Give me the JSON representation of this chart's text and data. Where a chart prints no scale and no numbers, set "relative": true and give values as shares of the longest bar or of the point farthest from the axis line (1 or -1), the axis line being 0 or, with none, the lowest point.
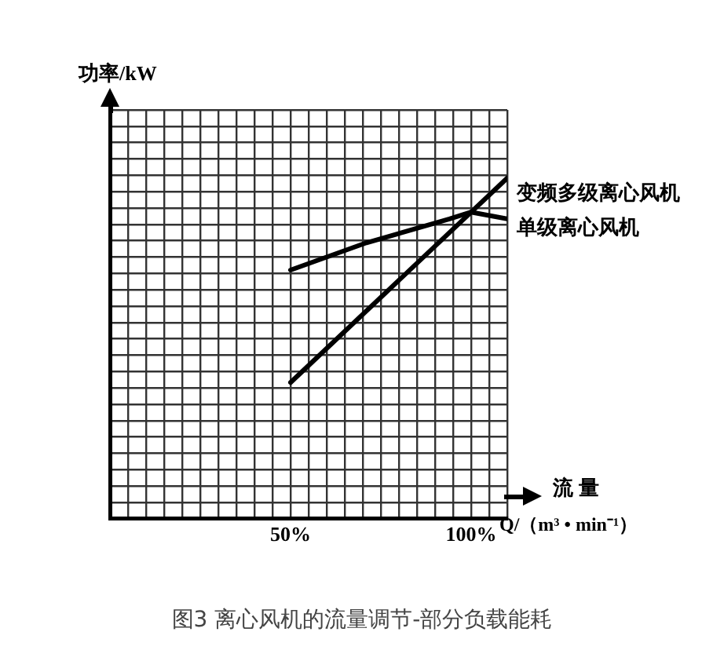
{
  "chart_data": {
    "type": "line",
    "title": "图3 离心风机的流量调节-部分负载能耗",
    "xlabel": "流 量\nQ/（m³ • min⁻¹）",
    "ylabel": "功率/kW",
    "relative": true,
    "xlim": [
      0,
      110
    ],
    "xticks": [
      {
        "value": 0,
        "label": null
      },
      {
        "value": 5,
        "label": null
      },
      {
        "value": 10,
        "label": null
      },
      {
        "value": 15,
        "label": null
      },
      {
        "value": 20,
        "label": null
      },
      {
        "value": 25,
        "label": null
      },
      {
        "value": 30,
        "label": null
      },
      {
        "value": 35,
        "label": null
      },
      {
        "value": 40,
        "label": null
      },
      {
        "value": 45,
        "label": null
      },
      {
        "value": 50,
        "label": "50%"
      },
      {
        "value": 55,
        "label": null
      },
      {
        "value": 60,
        "label": null
      },
      {
        "value": 65,
        "label": null
      },
      {
        "value": 70,
        "label": null
      },
      {
        "value": 75,
        "label": null
      },
      {
        "value": 80,
        "label": null
      },
      {
        "value": 85,
        "label": null
      },
      {
        "value": 90,
        "label": null
      },
      {
        "value": 95,
        "label": null
      },
      {
        "value": 100,
        "label": "100%"
      },
      {
        "value": 105,
        "label": null
      },
      {
        "value": 110,
        "label": null
      }
    ],
    "series": [
      {
        "name": "变频多级离心风机",
        "color": "#000000",
        "x": [
          50,
          110
        ],
        "values": [
          0.4,
          1
        ]
      },
      {
        "name": "单级离心风机",
        "color": "#000000",
        "x": [
          50,
          71,
          94,
          100,
          110
        ],
        "values": [
          0.73,
          0.81,
          0.88,
          0.9,
          0.88
        ]
      }
    ],
    "grid": true,
    "legend": false,
    "marker": "none",
    "line_style": "solid"
  }
}
